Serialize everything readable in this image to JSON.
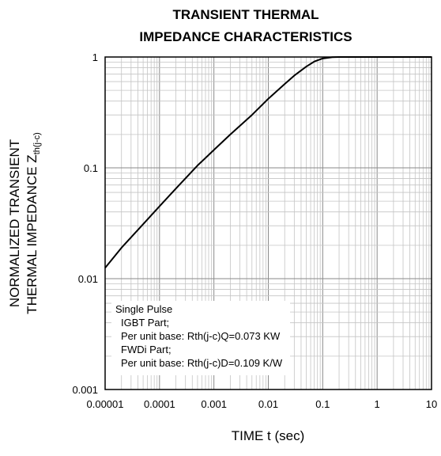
{
  "chart_data": {
    "type": "line",
    "title_lines": [
      "TRANSIENT THERMAL",
      "IMPEDANCE CHARACTERISTICS"
    ],
    "xlabel": "TIME t (sec)",
    "ylabel_line1": "NORMALIZED TRANSIENT",
    "ylabel_line2": "THERMAL IMPEDANCE Z",
    "ylabel_subscript": "th(j-c)",
    "x_scale": "log",
    "y_scale": "log",
    "xlim": [
      1e-05,
      10
    ],
    "ylim": [
      0.001,
      1
    ],
    "x_ticks": [
      "0.00001",
      "0.0001",
      "0.001",
      "0.01",
      "0.1",
      "1",
      "10"
    ],
    "y_ticks": [
      "1",
      "0.1",
      "0.01",
      "0.001"
    ],
    "grid": true,
    "series": [
      {
        "x": [
          1e-05,
          2e-05,
          5e-05,
          0.0001,
          0.0002,
          0.0005,
          0.001,
          0.002,
          0.005,
          0.01,
          0.02,
          0.03,
          0.05,
          0.07,
          0.1,
          0.15,
          0.2,
          0.5,
          1,
          2,
          5,
          10
        ],
        "y": [
          0.0125,
          0.019,
          0.031,
          0.045,
          0.065,
          0.105,
          0.145,
          0.2,
          0.3,
          0.42,
          0.57,
          0.68,
          0.82,
          0.91,
          0.97,
          0.995,
          1.0,
          1.0,
          1.0,
          1.0,
          1.0,
          1.0
        ]
      }
    ],
    "annotation_lines": [
      "Single Pulse",
      "IGBT Part;",
      "Per unit base: Rth(j-c)Q=0.073 KW",
      "FWDi Part;",
      "Per unit base: Rth(j-c)D=0.109 K/W"
    ]
  }
}
